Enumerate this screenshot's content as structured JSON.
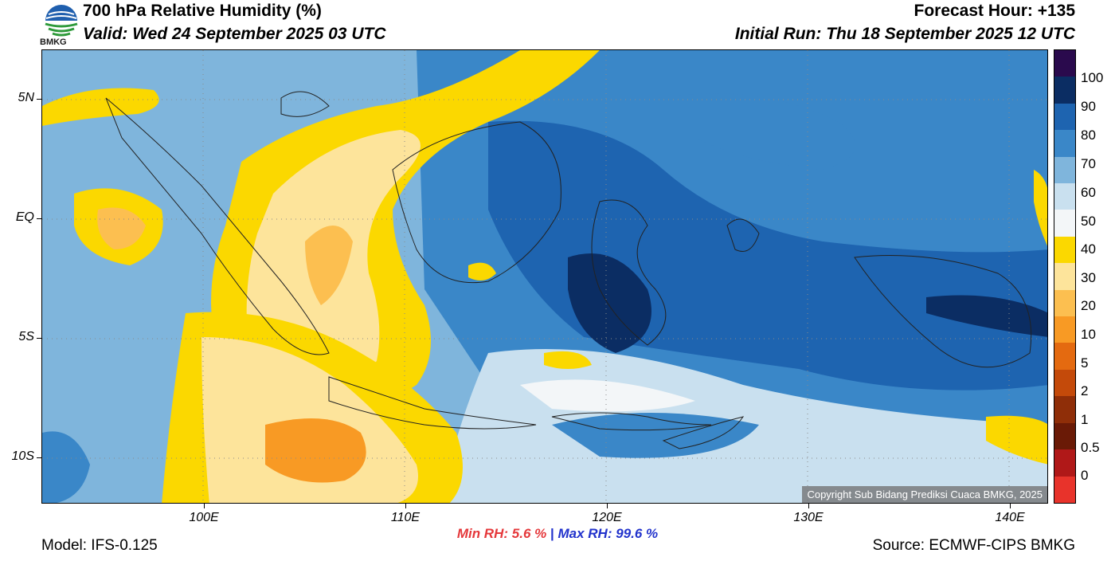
{
  "header": {
    "logo_text": "BMKG",
    "title": "700 hPa Relative Humidity (%)",
    "valid": "Valid: Wed 24 September 2025 03 UTC",
    "forecast_hour": "Forecast Hour: +135",
    "initial_run": "Initial Run: Thu 18 September 2025 12 UTC"
  },
  "map": {
    "lat_labels": [
      "5N",
      "EQ",
      "5S",
      "10S"
    ],
    "lon_labels": [
      "100E",
      "110E",
      "120E",
      "130E",
      "140E"
    ],
    "extent": {
      "lon_min": 92,
      "lon_max": 142,
      "lat_min": -12,
      "lat_max": 7
    },
    "copyright": "Copyright Sub Bidang Prediksi Cuaca BMKG, 2025"
  },
  "colorbar": {
    "labels": [
      "100",
      "90",
      "80",
      "70",
      "60",
      "50",
      "40",
      "30",
      "20",
      "10",
      "5",
      "2",
      "1",
      "0.5",
      "0"
    ],
    "colors": [
      "#2a0a4d",
      "#0b2d63",
      "#1e64b0",
      "#3a87c8",
      "#7fb5dc",
      "#c9e0ef",
      "#f3f6f8",
      "#fbd800",
      "#fde49b",
      "#fcbf50",
      "#f89a24",
      "#e46a10",
      "#c44a0a",
      "#8f2e08",
      "#6a1a06",
      "#b01818",
      "#e8332b"
    ]
  },
  "footer": {
    "min_label": "Min RH:",
    "min_value": "5.6 %",
    "separator": "|",
    "max_label": "Max RH:",
    "max_value": "99.6 %",
    "model": "Model: IFS-0.125",
    "source": "Source: ECMWF-CIPS BMKG"
  }
}
